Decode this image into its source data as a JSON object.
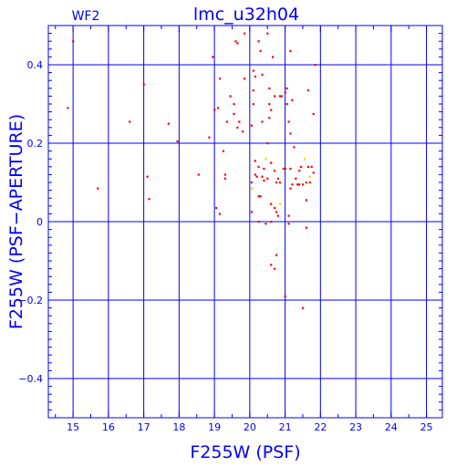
{
  "chart_data": {
    "type": "scatter",
    "title": "lmc_u32h04",
    "corner_label": "WF2",
    "xlabel": "F255W (PSF)",
    "ylabel": "F255W (PSF−APERTURE)",
    "xlim": [
      14.3,
      25.45
    ],
    "ylim": [
      -0.5,
      0.5
    ],
    "grid": true,
    "x_ticks": [
      15,
      16,
      17,
      18,
      19,
      20,
      21,
      22,
      23,
      24,
      25
    ],
    "x_tick_labels": [
      "15",
      "16",
      "17",
      "18",
      "19",
      "20",
      "21",
      "22",
      "23",
      "24",
      "25"
    ],
    "y_ticks": [
      -0.4,
      -0.2,
      0,
      0.2,
      0.4
    ],
    "y_tick_labels": [
      "−0.4",
      "−0.2",
      "0",
      "0.2",
      "0.4"
    ],
    "colors": {
      "axes": "#0000ff",
      "points": "#ff0000",
      "highlight": "#ffcc00"
    },
    "series": [
      {
        "values": [
          [
            15.0,
            0.46
          ],
          [
            14.85,
            0.29
          ],
          [
            15.7,
            0.085
          ],
          [
            16.6,
            0.255
          ],
          [
            17.0,
            0.35
          ],
          [
            17.1,
            0.115
          ],
          [
            17.15,
            0.058
          ],
          [
            17.7,
            0.25
          ],
          [
            17.95,
            0.205
          ],
          [
            18.55,
            0.12
          ],
          [
            18.85,
            0.215
          ],
          [
            18.95,
            0.42
          ],
          [
            19.0,
            0.285
          ],
          [
            19.1,
            0.29
          ],
          [
            19.05,
            0.035
          ],
          [
            19.15,
            0.02
          ],
          [
            19.15,
            0.365
          ],
          [
            19.25,
            0.18
          ],
          [
            19.3,
            0.12
          ],
          [
            19.3,
            0.11
          ],
          [
            19.35,
            0.255
          ],
          [
            19.45,
            0.32
          ],
          [
            19.55,
            0.3
          ],
          [
            19.55,
            0.275
          ],
          [
            19.6,
            0.46
          ],
          [
            19.65,
            0.455
          ],
          [
            19.65,
            0.24
          ],
          [
            19.7,
            0.255
          ],
          [
            19.8,
            0.23
          ],
          [
            19.85,
            0.48
          ],
          [
            19.85,
            0.365
          ],
          [
            20.05,
            0.245
          ],
          [
            20.05,
            0.1
          ],
          [
            20.05,
            0.025
          ],
          [
            20.1,
            0.385
          ],
          [
            20.1,
            0.335
          ],
          [
            20.1,
            0.3
          ],
          [
            20.15,
            0.37
          ],
          [
            20.15,
            0.12
          ],
          [
            20.2,
            0.115
          ],
          [
            20.25,
            0.46
          ],
          [
            20.25,
            0.14
          ],
          [
            20.25,
            0.065
          ],
          [
            20.25,
            0.0
          ],
          [
            20.3,
            0.435
          ],
          [
            20.3,
            0.065
          ],
          [
            20.35,
            0.375
          ],
          [
            20.35,
            0.255
          ],
          [
            20.35,
            0.115
          ],
          [
            20.4,
            0.135
          ],
          [
            20.4,
            0.105
          ],
          [
            20.45,
            -0.005
          ],
          [
            20.5,
            0.48
          ],
          [
            20.5,
            0.2
          ],
          [
            20.55,
            0.34
          ],
          [
            20.55,
            0.3
          ],
          [
            20.55,
            0.265
          ],
          [
            20.6,
            0.285
          ],
          [
            20.6,
            0.15
          ],
          [
            20.6,
            0.045
          ],
          [
            20.6,
            0.0
          ],
          [
            20.6,
            -0.11
          ],
          [
            20.65,
            0.42
          ],
          [
            20.7,
            0.32
          ],
          [
            20.7,
            0.13
          ],
          [
            20.7,
            0.035
          ],
          [
            20.7,
            -0.12
          ],
          [
            20.75,
            0.1
          ],
          [
            20.75,
            0.025
          ],
          [
            20.75,
            -0.085
          ],
          [
            20.8,
            0.11
          ],
          [
            20.8,
            0.015
          ],
          [
            20.85,
            0.32
          ],
          [
            20.85,
            0.1
          ],
          [
            20.9,
            0.32
          ],
          [
            20.95,
            0.135
          ],
          [
            21.0,
            0.33
          ],
          [
            21.0,
            0.135
          ],
          [
            21.0,
            -0.19
          ],
          [
            21.05,
            0.34
          ],
          [
            21.05,
            0.3
          ],
          [
            21.1,
            0.255
          ],
          [
            21.1,
            0.015
          ],
          [
            21.1,
            -0.005
          ],
          [
            21.15,
            0.435
          ],
          [
            21.15,
            0.225
          ],
          [
            21.15,
            0.135
          ],
          [
            21.15,
            0.085
          ],
          [
            21.2,
            0.31
          ],
          [
            21.2,
            0.095
          ],
          [
            21.25,
            0.19
          ],
          [
            21.3,
            0.11
          ],
          [
            21.35,
            0.095
          ],
          [
            21.4,
            0.095
          ],
          [
            21.4,
            0.13
          ],
          [
            21.45,
            0.14
          ],
          [
            21.5,
            0.095
          ],
          [
            21.5,
            -0.22
          ],
          [
            21.6,
            0.1
          ],
          [
            21.6,
            0.055
          ],
          [
            21.6,
            -0.015
          ],
          [
            21.65,
            0.335
          ],
          [
            21.65,
            0.14
          ],
          [
            21.7,
            0.1
          ],
          [
            21.75,
            0.14
          ],
          [
            21.8,
            0.125
          ],
          [
            21.8,
            0.275
          ],
          [
            21.85,
            0.4
          ],
          [
            20.15,
            0.155
          ],
          [
            20.5,
            0.11
          ]
        ]
      },
      {
        "values": [
          [
            20.05,
            0.085
          ],
          [
            20.45,
            0.16
          ],
          [
            20.85,
            0.045
          ],
          [
            21.55,
            0.16
          ],
          [
            21.7,
            0.115
          ]
        ]
      }
    ]
  }
}
